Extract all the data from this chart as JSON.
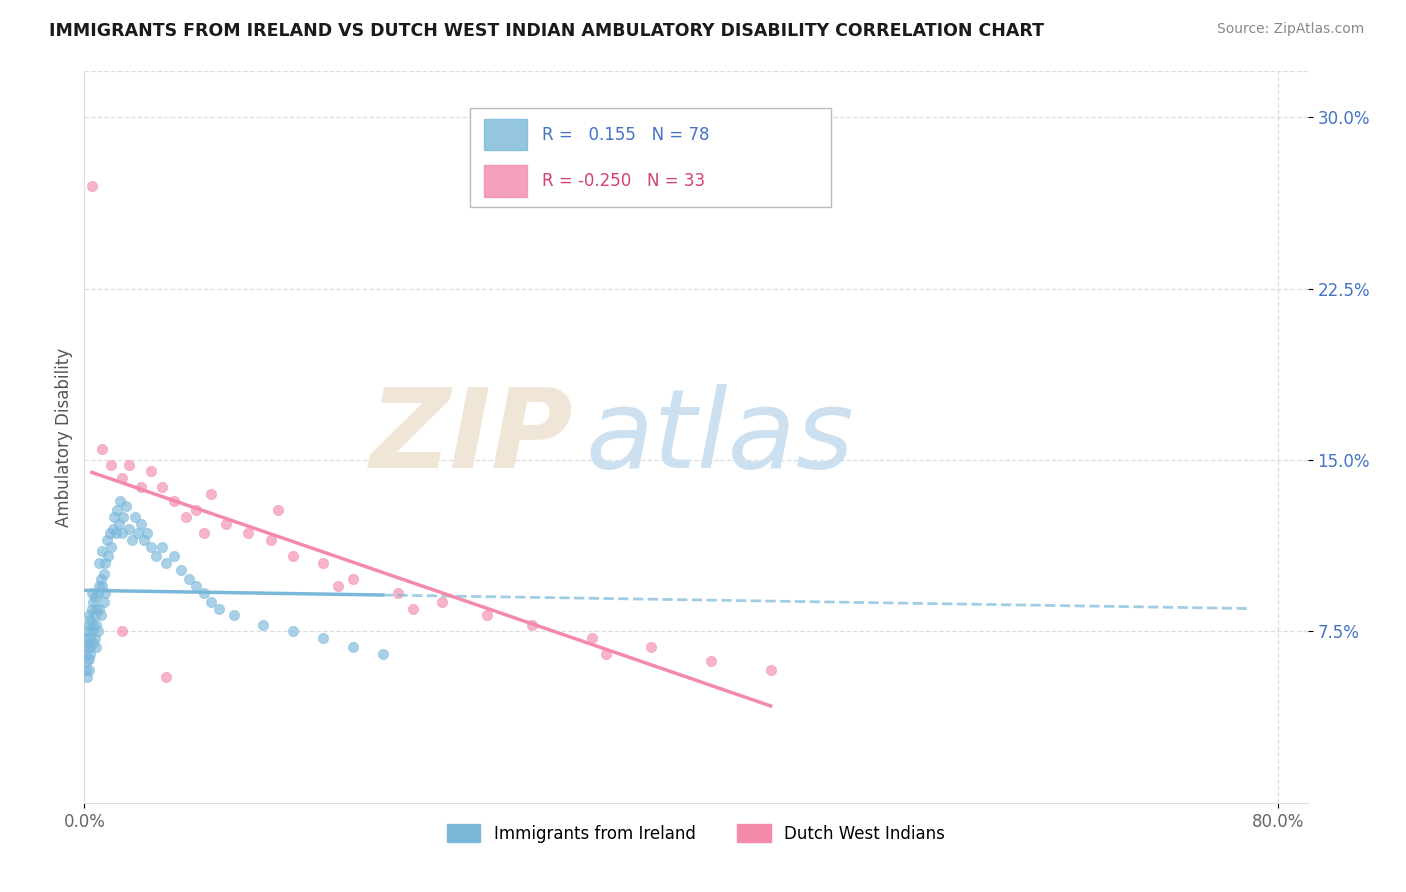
{
  "title": "IMMIGRANTS FROM IRELAND VS DUTCH WEST INDIAN AMBULATORY DISABILITY CORRELATION CHART",
  "source": "Source: ZipAtlas.com",
  "ylabel": "Ambulatory Disability",
  "xlim": [
    0.0,
    0.82
  ],
  "ylim": [
    0.0,
    0.32
  ],
  "ytick_values": [
    0.075,
    0.15,
    0.225,
    0.3
  ],
  "ytick_labels": [
    "7.5%",
    "15.0%",
    "22.5%",
    "30.0%"
  ],
  "xtick_values": [
    0.0,
    0.8
  ],
  "xtick_labels": [
    "0.0%",
    "80.0%"
  ],
  "ireland_color": "#7ab8d9",
  "dutch_color": "#f48aaa",
  "ireland_r": 0.155,
  "ireland_n": 78,
  "dutch_r": -0.25,
  "dutch_n": 33,
  "background": "#ffffff",
  "grid_color": "#dddddd",
  "title_color": "#1a1a1a",
  "axis_label_color": "#555555",
  "yaxis_tick_color": "#4472c4",
  "source_color": "#888888",
  "ireland_x": [
    0.001,
    0.001,
    0.001,
    0.002,
    0.002,
    0.002,
    0.002,
    0.003,
    0.003,
    0.003,
    0.003,
    0.003,
    0.004,
    0.004,
    0.004,
    0.004,
    0.005,
    0.005,
    0.005,
    0.006,
    0.006,
    0.006,
    0.007,
    0.007,
    0.007,
    0.008,
    0.008,
    0.008,
    0.009,
    0.009,
    0.01,
    0.01,
    0.01,
    0.011,
    0.011,
    0.012,
    0.012,
    0.013,
    0.013,
    0.014,
    0.014,
    0.015,
    0.016,
    0.017,
    0.018,
    0.019,
    0.02,
    0.021,
    0.022,
    0.023,
    0.024,
    0.025,
    0.026,
    0.028,
    0.03,
    0.032,
    0.034,
    0.036,
    0.038,
    0.04,
    0.042,
    0.045,
    0.048,
    0.052,
    0.055,
    0.06,
    0.065,
    0.07,
    0.075,
    0.08,
    0.085,
    0.09,
    0.1,
    0.12,
    0.14,
    0.16,
    0.18,
    0.2
  ],
  "ireland_y": [
    0.065,
    0.072,
    0.058,
    0.068,
    0.075,
    0.062,
    0.055,
    0.07,
    0.078,
    0.063,
    0.058,
    0.082,
    0.072,
    0.065,
    0.08,
    0.068,
    0.085,
    0.075,
    0.092,
    0.078,
    0.07,
    0.088,
    0.082,
    0.072,
    0.09,
    0.078,
    0.085,
    0.068,
    0.075,
    0.092,
    0.095,
    0.105,
    0.085,
    0.098,
    0.082,
    0.095,
    0.11,
    0.1,
    0.088,
    0.105,
    0.092,
    0.115,
    0.108,
    0.118,
    0.112,
    0.12,
    0.125,
    0.118,
    0.128,
    0.122,
    0.132,
    0.118,
    0.125,
    0.13,
    0.12,
    0.115,
    0.125,
    0.118,
    0.122,
    0.115,
    0.118,
    0.112,
    0.108,
    0.112,
    0.105,
    0.108,
    0.102,
    0.098,
    0.095,
    0.092,
    0.088,
    0.085,
    0.082,
    0.078,
    0.075,
    0.072,
    0.068,
    0.065
  ],
  "dutch_x": [
    0.005,
    0.012,
    0.018,
    0.025,
    0.03,
    0.038,
    0.045,
    0.052,
    0.06,
    0.068,
    0.075,
    0.085,
    0.095,
    0.11,
    0.125,
    0.14,
    0.16,
    0.18,
    0.21,
    0.24,
    0.27,
    0.3,
    0.34,
    0.38,
    0.42,
    0.46,
    0.025,
    0.055,
    0.13,
    0.22,
    0.08,
    0.17,
    0.35
  ],
  "dutch_y": [
    0.27,
    0.155,
    0.148,
    0.142,
    0.148,
    0.138,
    0.145,
    0.138,
    0.132,
    0.125,
    0.128,
    0.135,
    0.122,
    0.118,
    0.115,
    0.108,
    0.105,
    0.098,
    0.092,
    0.088,
    0.082,
    0.078,
    0.072,
    0.068,
    0.062,
    0.058,
    0.075,
    0.055,
    0.128,
    0.085,
    0.118,
    0.095,
    0.065
  ]
}
